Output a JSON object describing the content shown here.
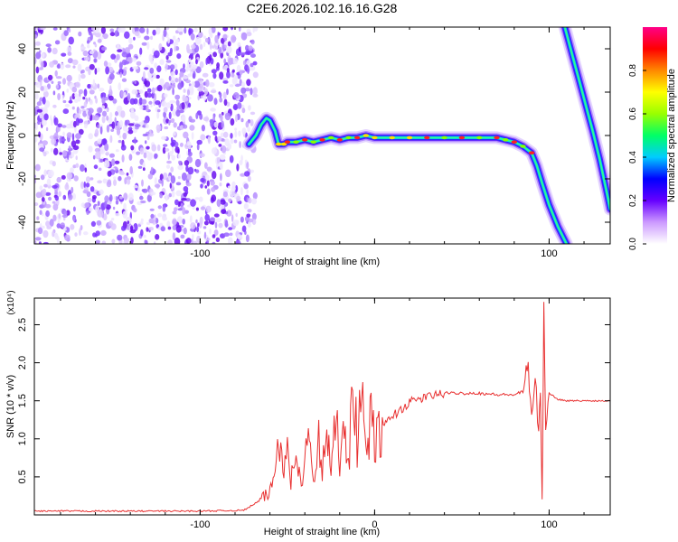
{
  "title": "C2E6.2026.102.16.16.G28",
  "chart_data": [
    {
      "type": "heatmap",
      "xlabel": "Height of straight line (km)",
      "ylabel": "Frequency (Hz)",
      "xlim": [
        -195,
        135
      ],
      "ylim": [
        -50,
        50
      ],
      "x_ticks": [
        -100,
        0,
        100
      ],
      "x_tick_labels": [
        "-100",
        "",
        "100"
      ],
      "y_ticks": [
        -40,
        -20,
        0,
        20,
        40
      ],
      "y_tick_labels": [
        "-40",
        "-20",
        "0",
        "20",
        "40"
      ],
      "grid": false,
      "noise_region_x": [
        -195,
        -72
      ],
      "colorbar": {
        "label": "Normalized spectral amplitude",
        "range": [
          0,
          1
        ],
        "ticks": [
          0.0,
          0.2,
          0.4,
          0.6,
          0.8
        ],
        "tick_labels": [
          "0.0",
          "0.2",
          "0.4",
          "0.6",
          "0.8"
        ],
        "colormap": [
          "#ffffff",
          "#cc99ff",
          "#6600ff",
          "#0000ff",
          "#00ccff",
          "#00ff66",
          "#99ff00",
          "#ffff00",
          "#ff8800",
          "#ff0000",
          "#ff0088"
        ]
      },
      "ridges": [
        {
          "x": [
            -72,
            -68,
            -65,
            -62,
            -60,
            -57,
            -55,
            -52,
            -50,
            -45,
            -40,
            -35,
            -30,
            -25,
            -20,
            -15,
            -10,
            -5,
            0,
            10,
            20,
            30,
            40,
            50,
            60,
            70,
            75,
            80,
            85,
            90,
            93,
            96,
            100,
            105,
            110
          ],
          "y": [
            -4,
            0,
            5,
            8,
            7,
            2,
            -4,
            -4,
            -3,
            -3,
            -2,
            -3,
            -2,
            -1,
            -2,
            -1,
            -1,
            0,
            -1,
            -1,
            -1,
            -1,
            -1,
            -1,
            -1,
            -1,
            -2,
            -3,
            -5,
            -8,
            -14,
            -22,
            -32,
            -42,
            -50
          ]
        },
        {
          "x": [
            109,
            113,
            117,
            121,
            125,
            129,
            133,
            135
          ],
          "y": [
            50,
            38,
            26,
            14,
            2,
            -11,
            -26,
            -34
          ]
        }
      ]
    },
    {
      "type": "line",
      "xlabel": "Height of straight line (km)",
      "ylabel": "SNR (10 * v/v)",
      "scale_label": "(x10⁴)",
      "xlim": [
        -195,
        135
      ],
      "ylim": [
        0,
        2.85
      ],
      "x_ticks": [
        -100,
        0,
        100
      ],
      "x_tick_labels": [
        "-100",
        "0",
        "100"
      ],
      "y_ticks": [
        0.5,
        1.0,
        1.5,
        2.0,
        2.5
      ],
      "y_tick_labels": [
        "0.5",
        "1.0",
        "1.5",
        "2.0",
        "2.5"
      ],
      "grid": false,
      "series": [
        {
          "color": "#e83030",
          "x": [
            -195,
            -150,
            -100,
            -75,
            -65,
            -60,
            -57,
            -55,
            -52,
            -50,
            -48,
            -45,
            -42,
            -40,
            -38,
            -35,
            -32,
            -30,
            -28,
            -25,
            -22,
            -20,
            -18,
            -15,
            -12,
            -10,
            -8,
            -5,
            -2,
            0,
            5,
            10,
            15,
            20,
            25,
            30,
            35,
            40,
            50,
            60,
            70,
            80,
            85,
            88,
            90,
            92,
            94,
            95,
            96,
            97,
            98,
            100,
            105,
            110,
            120,
            135
          ],
          "y": [
            0.05,
            0.05,
            0.05,
            0.06,
            0.2,
            0.3,
            0.55,
            1.2,
            0.5,
            1.3,
            0.4,
            0.9,
            0.3,
            0.8,
            1.05,
            0.35,
            1.1,
            0.45,
            1.2,
            0.55,
            1.3,
            0.75,
            1.4,
            0.7,
            1.75,
            0.9,
            1.6,
            0.85,
            1.25,
            0.95,
            1.15,
            1.3,
            1.38,
            1.48,
            1.52,
            1.55,
            1.58,
            1.6,
            1.6,
            1.6,
            1.58,
            1.58,
            1.62,
            2.0,
            1.2,
            1.9,
            1.0,
            1.6,
            0.15,
            2.85,
            1.2,
            1.6,
            1.52,
            1.5,
            1.5,
            1.5
          ]
        }
      ]
    }
  ]
}
